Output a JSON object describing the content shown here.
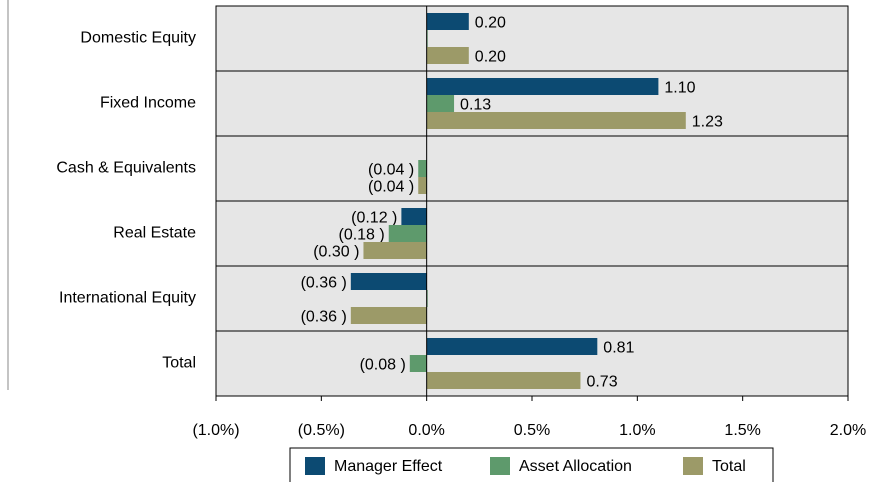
{
  "chart_data": {
    "type": "hbar",
    "categories": [
      "Domestic Equity",
      "Fixed Income",
      "Cash & Equivalents",
      "Real Estate",
      "International Equity",
      "Total"
    ],
    "series": [
      {
        "name": "Manager Effect",
        "color": "#0c4a72",
        "values": [
          0.2,
          1.1,
          null,
          -0.12,
          -0.36,
          0.81
        ],
        "value_labels": [
          "0.20",
          "1.10",
          null,
          "(0.12 )",
          "(0.36 )",
          "0.81"
        ]
      },
      {
        "name": "Asset Allocation",
        "color": "#5e9a6c",
        "values": [
          0,
          0.13,
          -0.04,
          -0.18,
          0,
          -0.08
        ],
        "value_labels": [
          null,
          "0.13",
          "(0.04 )",
          "(0.18 )",
          null,
          "(0.08 )"
        ]
      },
      {
        "name": "Total",
        "color": "#9c9a68",
        "values": [
          0.2,
          1.23,
          -0.04,
          -0.3,
          -0.36,
          0.73
        ],
        "value_labels": [
          "0.20",
          "1.23",
          "(0.04 )",
          "(0.30 )",
          "(0.36 )",
          "0.73"
        ]
      }
    ],
    "xlim": [
      -1.0,
      2.0
    ],
    "xticks": [
      {
        "value": -1.0,
        "label": "(1.0%)"
      },
      {
        "value": -0.5,
        "label": "(0.5%)"
      },
      {
        "value": 0,
        "label": "0.0%"
      },
      {
        "value": 0.5,
        "label": "0.5%"
      },
      {
        "value": 1.0,
        "label": "1.0%"
      },
      {
        "value": 1.5,
        "label": "1.5%"
      },
      {
        "value": 2.0,
        "label": "2.0%"
      }
    ],
    "negative_label_color": "#ff0000",
    "legend": "bottom"
  }
}
